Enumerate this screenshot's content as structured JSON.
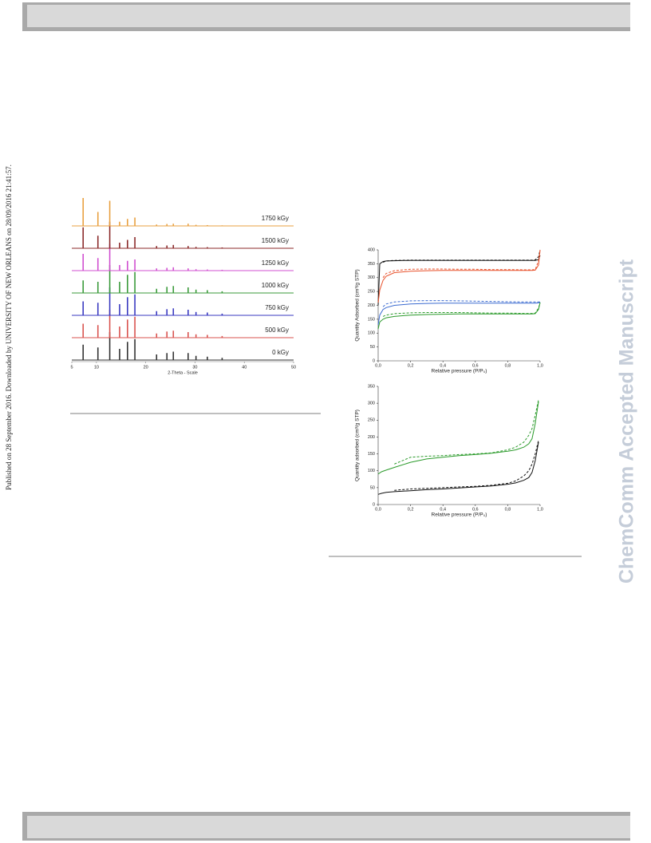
{
  "side_note": "Published on 28 September 2016. Downloaded by UNIVERSITY OF NEW ORLEANS on 28/09/2016 21:41:57.",
  "watermark": "ChemComm Accepted Manuscript",
  "chart_data": [
    {
      "type": "stem",
      "xlabel": "2-Theta - Scale",
      "x": [
        7.3,
        10.3,
        12.7,
        14.7,
        16.3,
        17.8,
        22.2,
        24.3,
        25.6,
        28.6,
        30.2,
        32.5,
        35.5
      ],
      "xlim": [
        5,
        50
      ],
      "xticks": [
        5,
        10,
        20,
        30,
        40,
        50
      ],
      "series": [
        {
          "name": "0 kGy",
          "color": "#333333",
          "values": [
            0.55,
            0.45,
            1.0,
            0.4,
            0.65,
            0.75,
            0.2,
            0.25,
            0.3,
            0.25,
            0.15,
            0.12,
            0.08
          ]
        },
        {
          "name": "500 kGy",
          "color": "#d9534f",
          "values": [
            0.5,
            0.45,
            1.0,
            0.4,
            0.65,
            0.75,
            0.15,
            0.22,
            0.25,
            0.2,
            0.12,
            0.1,
            0.06
          ]
        },
        {
          "name": "750 kGy",
          "color": "#3a3ac0",
          "values": [
            0.5,
            0.45,
            1.0,
            0.4,
            0.65,
            0.75,
            0.15,
            0.22,
            0.25,
            0.2,
            0.12,
            0.1,
            0.06
          ]
        },
        {
          "name": "1000 kGy",
          "color": "#3a9a3a",
          "values": [
            0.45,
            0.4,
            1.0,
            0.4,
            0.65,
            0.75,
            0.15,
            0.22,
            0.25,
            0.2,
            0.12,
            0.1,
            0.06
          ]
        },
        {
          "name": "1250 kGy",
          "color": "#d04fd0",
          "values": [
            0.6,
            0.45,
            0.95,
            0.2,
            0.35,
            0.4,
            0.08,
            0.1,
            0.12,
            0.08,
            0.05,
            0.04,
            0.03
          ]
        },
        {
          "name": "1500 kGy",
          "color": "#8b2a2a",
          "values": [
            0.75,
            0.45,
            0.95,
            0.2,
            0.3,
            0.4,
            0.08,
            0.1,
            0.12,
            0.08,
            0.05,
            0.04,
            0.03
          ]
        },
        {
          "name": "1750 kGy",
          "color": "#e8a040",
          "values": [
            1.0,
            0.5,
            0.9,
            0.15,
            0.25,
            0.3,
            0.05,
            0.07,
            0.08,
            0.08,
            0.04,
            0.03,
            0.02
          ]
        }
      ]
    },
    {
      "type": "line",
      "xlabel": "Relative pressure (P/P₀)",
      "ylabel": "Quantity Adsorbed (cm³/g STP)",
      "x": [
        0,
        0.01,
        0.03,
        0.05,
        0.1,
        0.2,
        0.3,
        0.4,
        0.5,
        0.6,
        0.7,
        0.8,
        0.9,
        0.95,
        0.97,
        0.99,
        1.0
      ],
      "xlim": [
        0,
        1
      ],
      "ylim": [
        0,
        400
      ],
      "xticks": [
        {
          "value": 0,
          "label": "0,0"
        },
        {
          "value": 0.2,
          "label": "0,2"
        },
        {
          "value": 0.4,
          "label": "0,4"
        },
        {
          "value": 0.6,
          "label": "0,6"
        },
        {
          "value": 0.8,
          "label": "0,8"
        },
        {
          "value": 1,
          "label": "1,0"
        }
      ],
      "yticks": [
        0,
        50,
        100,
        150,
        200,
        250,
        300,
        350,
        400
      ],
      "series": [
        {
          "color": "#111111",
          "dashed": false,
          "values": [
            200,
            350,
            358,
            360,
            361,
            362,
            362,
            362,
            362,
            362,
            362,
            362,
            362,
            362,
            362,
            365,
            380
          ]
        },
        {
          "color": "#111111",
          "dashed": true,
          "values": [
            null,
            null,
            355,
            360,
            362,
            363,
            363,
            363,
            363,
            363,
            363,
            363,
            363,
            363,
            364,
            375,
            400
          ]
        },
        {
          "color": "#e8502a",
          "dashed": false,
          "values": [
            210,
            255,
            290,
            305,
            318,
            323,
            325,
            326,
            326,
            326,
            326,
            326,
            326,
            326,
            327,
            345,
            400
          ]
        },
        {
          "color": "#e8502a",
          "dashed": true,
          "values": [
            null,
            null,
            300,
            315,
            325,
            330,
            331,
            331,
            330,
            330,
            329,
            329,
            328,
            328,
            329,
            360,
            400
          ]
        },
        {
          "color": "#3a6ad0",
          "dashed": false,
          "values": [
            130,
            165,
            185,
            192,
            200,
            205,
            207,
            208,
            208,
            208,
            208,
            208,
            208,
            208,
            208,
            209,
            212
          ]
        },
        {
          "color": "#3a6ad0",
          "dashed": true,
          "values": [
            null,
            null,
            195,
            205,
            212,
            216,
            217,
            217,
            216,
            215,
            214,
            213,
            212,
            212,
            212,
            212,
            212
          ]
        },
        {
          "color": "#2a9a2a",
          "dashed": false,
          "values": [
            115,
            140,
            150,
            155,
            160,
            165,
            167,
            168,
            169,
            169,
            169,
            169,
            169,
            169,
            170,
            185,
            210
          ]
        },
        {
          "color": "#2a9a2a",
          "dashed": true,
          "values": [
            null,
            null,
            160,
            165,
            170,
            173,
            174,
            174,
            174,
            173,
            172,
            172,
            171,
            171,
            172,
            190,
            210
          ]
        }
      ]
    },
    {
      "type": "line",
      "xlabel": "Relative pressure (P/P₀)",
      "ylabel": "Quantity adsorbed (cm³/g STP)",
      "x": [
        0,
        0.02,
        0.05,
        0.1,
        0.2,
        0.3,
        0.4,
        0.5,
        0.6,
        0.7,
        0.8,
        0.85,
        0.9,
        0.93,
        0.95,
        0.97,
        0.99
      ],
      "xlim": [
        0,
        1
      ],
      "ylim": [
        0,
        350
      ],
      "xticks": [
        {
          "value": 0,
          "label": "0,0"
        },
        {
          "value": 0.2,
          "label": "0,2"
        },
        {
          "value": 0.4,
          "label": "0,4"
        },
        {
          "value": 0.6,
          "label": "0,6"
        },
        {
          "value": 0.8,
          "label": "0,8"
        },
        {
          "value": 1,
          "label": "1,0"
        }
      ],
      "yticks": [
        0,
        50,
        100,
        150,
        200,
        250,
        300,
        350
      ],
      "series": [
        {
          "color": "#2a9a2a",
          "dashed": false,
          "values": [
            90,
            97,
            102,
            110,
            125,
            135,
            140,
            145,
            148,
            152,
            158,
            162,
            170,
            180,
            195,
            240,
            305
          ]
        },
        {
          "color": "#2a9a2a",
          "dashed": true,
          "values": [
            null,
            null,
            null,
            120,
            140,
            143,
            145,
            148,
            150,
            153,
            162,
            170,
            185,
            205,
            225,
            265,
            310
          ]
        },
        {
          "color": "#111111",
          "dashed": false,
          "values": [
            30,
            33,
            36,
            38,
            41,
            44,
            46,
            49,
            52,
            55,
            60,
            64,
            72,
            80,
            95,
            130,
            185
          ]
        },
        {
          "color": "#111111",
          "dashed": true,
          "values": [
            null,
            null,
            null,
            42,
            46,
            48,
            50,
            52,
            54,
            57,
            63,
            70,
            85,
            100,
            120,
            150,
            190
          ]
        }
      ]
    }
  ]
}
